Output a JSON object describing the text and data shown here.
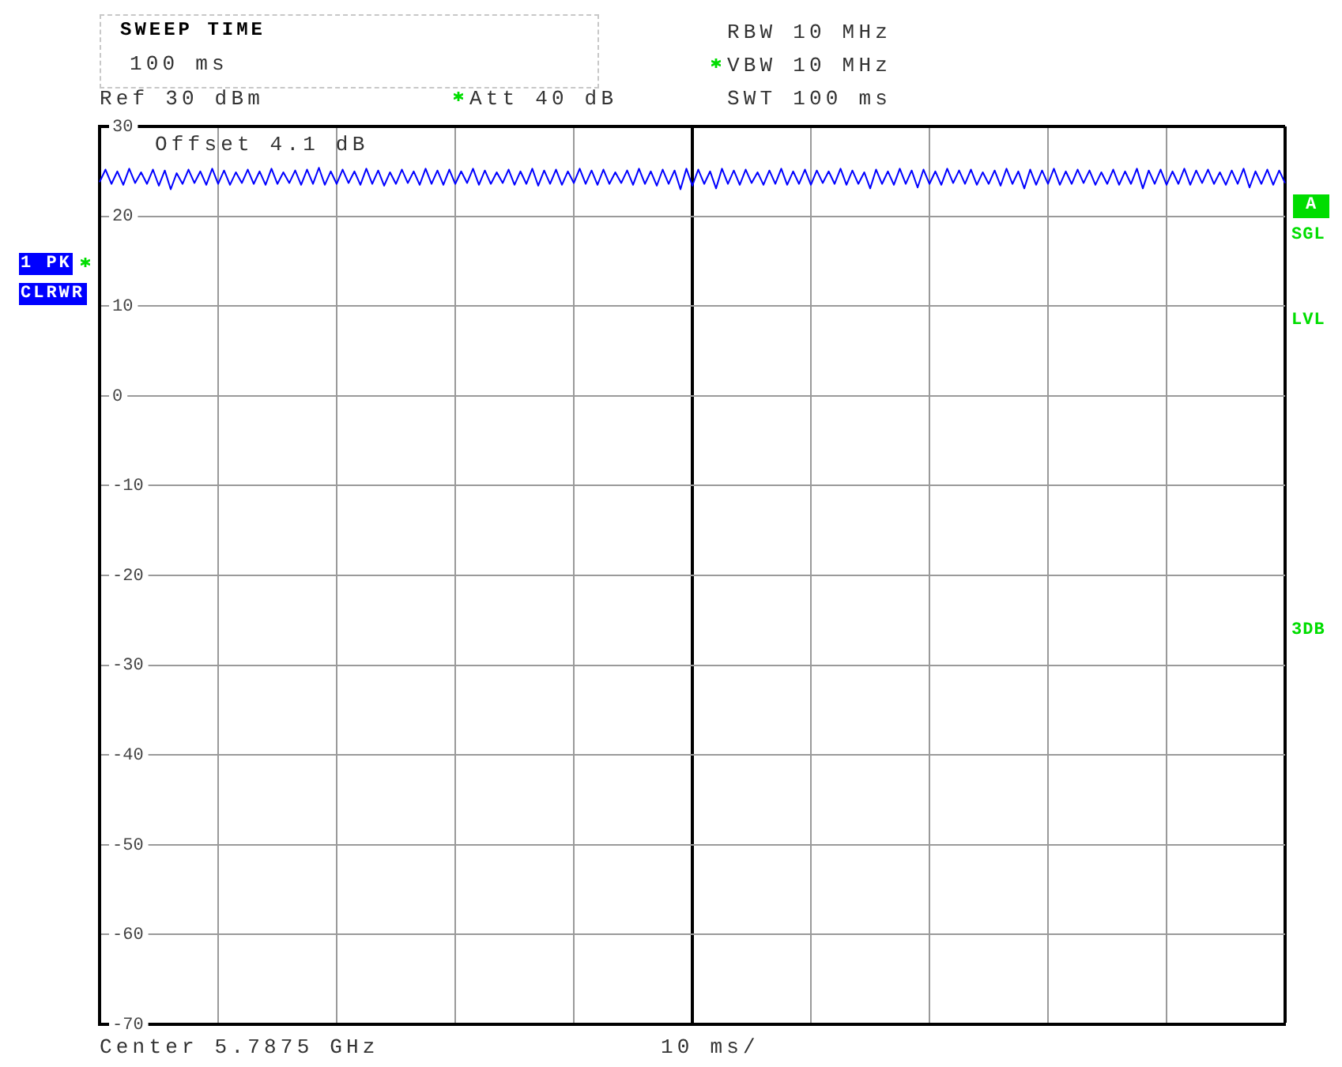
{
  "chart_data": {
    "type": "line",
    "categories": [
      null,
      null,
      null,
      null,
      null,
      null,
      null,
      null,
      null,
      null,
      null,
      null,
      null,
      null,
      null,
      null,
      null,
      null,
      null,
      null,
      null,
      null,
      null,
      null,
      null,
      null,
      null,
      null,
      null,
      null,
      null,
      null,
      null,
      null,
      null,
      null,
      null,
      null,
      null,
      null,
      null,
      null,
      null,
      null,
      null,
      null,
      null,
      null,
      null,
      null,
      null,
      null,
      null,
      null,
      null,
      null,
      null,
      null,
      null,
      null,
      null,
      null,
      null,
      null,
      null,
      null,
      null,
      null,
      null,
      null,
      null,
      null,
      null,
      null,
      null,
      null,
      null,
      null,
      null,
      null,
      null,
      null,
      null,
      null,
      null,
      null,
      null,
      null,
      null,
      null,
      null,
      null,
      null,
      null,
      null,
      null,
      null,
      null,
      null,
      null,
      null,
      null,
      null,
      null,
      null,
      null,
      null,
      null,
      null,
      null,
      null,
      null,
      null,
      null,
      null,
      null,
      null,
      null,
      null,
      null,
      null,
      null,
      null,
      null,
      null,
      null,
      null,
      null,
      null,
      null,
      null,
      null,
      null,
      null,
      null,
      null,
      null,
      null,
      null,
      null,
      null,
      null,
      null,
      null,
      null,
      null,
      null,
      null,
      null,
      null,
      null,
      null,
      null,
      null,
      null,
      null,
      null,
      null,
      null,
      null,
      null,
      null,
      null,
      null,
      null,
      null,
      null,
      null,
      null,
      null,
      null,
      null,
      null,
      null,
      null,
      null,
      null,
      null,
      null,
      null,
      null,
      null,
      null,
      null,
      null,
      null,
      null,
      null,
      null,
      null,
      null,
      null,
      null,
      null,
      null,
      null,
      null,
      null,
      null,
      null,
      null
    ],
    "series": [
      {
        "color": "#0000ff",
        "values": [
          23.8,
          25.2,
          23.6,
          25.0,
          23.5,
          25.3,
          23.7,
          24.9,
          23.6,
          25.2,
          23.4,
          25.1,
          23.0,
          24.8,
          23.6,
          25.2,
          23.7,
          25.0,
          23.5,
          25.3,
          23.6,
          25.1,
          23.5,
          24.9,
          23.7,
          25.2,
          23.6,
          25.0,
          23.5,
          25.3,
          23.6,
          24.9,
          23.7,
          25.1,
          23.5,
          25.2,
          23.6,
          25.4,
          23.5,
          25.0,
          23.6,
          25.2,
          23.7,
          25.0,
          23.5,
          25.3,
          23.6,
          25.1,
          23.4,
          24.9,
          23.6,
          25.2,
          23.7,
          25.0,
          23.5,
          25.3,
          23.6,
          25.1,
          23.5,
          25.2,
          23.6,
          25.0,
          23.7,
          25.3,
          23.5,
          25.1,
          23.6,
          24.9,
          23.7,
          25.2,
          23.5,
          25.0,
          23.6,
          25.3,
          23.4,
          25.1,
          23.6,
          25.2,
          23.5,
          25.0,
          23.7,
          25.3,
          23.6,
          25.1,
          23.5,
          25.2,
          23.6,
          24.9,
          23.7,
          25.1,
          23.5,
          25.3,
          23.6,
          25.0,
          23.4,
          25.2,
          23.6,
          25.1,
          23.0,
          25.3,
          23.4,
          25.2,
          23.6,
          25.0,
          23.1,
          25.3,
          23.6,
          25.1,
          23.5,
          25.2,
          23.7,
          24.9,
          23.5,
          25.1,
          23.6,
          25.3,
          23.5,
          25.0,
          23.6,
          25.2,
          23.5,
          25.1,
          23.7,
          25.0,
          23.6,
          25.3,
          23.5,
          25.1,
          23.6,
          24.9,
          23.1,
          25.2,
          23.6,
          25.0,
          23.5,
          25.3,
          23.6,
          25.1,
          23.2,
          25.2,
          23.6,
          25.0,
          23.5,
          25.3,
          23.7,
          25.1,
          23.6,
          25.2,
          23.5,
          24.9,
          23.6,
          25.1,
          23.4,
          25.3,
          23.6,
          25.0,
          23.1,
          25.2,
          23.5,
          25.1,
          23.6,
          25.3,
          23.5,
          25.0,
          23.6,
          25.2,
          23.7,
          25.1,
          23.5,
          24.9,
          23.6,
          25.2,
          23.5,
          25.0,
          23.6,
          25.3,
          23.1,
          25.1,
          23.6,
          25.2,
          23.5,
          25.0,
          23.6,
          25.3,
          23.5,
          25.1,
          23.7,
          25.2,
          23.6,
          24.9,
          23.5,
          25.1,
          23.6,
          25.3,
          23.2,
          25.0,
          23.6,
          25.2,
          23.5,
          25.1,
          23.7
        ]
      }
    ],
    "ylim": [
      -70,
      30
    ],
    "yticks": [
      -70,
      -60,
      -50,
      -40,
      -30,
      -20,
      -10,
      0,
      10,
      20,
      30
    ],
    "grid": true,
    "tick_labels": "y",
    "marker": "none",
    "line_style": "solid",
    "annotations": [
      "SWEEP TIME",
      "100 ms",
      "Ref 30 dBm",
      "Att 40 dB",
      "RBW 10 MHz",
      "VBW 10 MHz",
      "SWT 100 ms",
      "Offset 4.1 dB",
      "1 PK",
      "CLRWR",
      "A",
      "SGL",
      "LVL",
      "3DB",
      "Center 5.7875 GHz",
      "10 ms/"
    ]
  }
}
